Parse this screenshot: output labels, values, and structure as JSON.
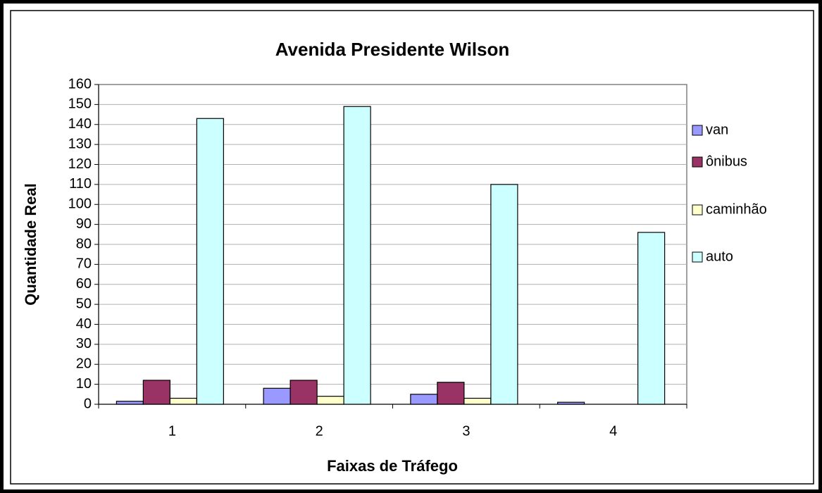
{
  "chart_data": {
    "type": "bar",
    "title": "Avenida Presidente Wilson",
    "x_label": "Faixas de Tráfego",
    "y_label": "Quantidade Real",
    "categories": [
      "1",
      "2",
      "3",
      "4"
    ],
    "series": [
      {
        "name": "van",
        "color": "#9999ff",
        "values": [
          1.5,
          8,
          5,
          1
        ]
      },
      {
        "name": "ônibus",
        "color": "#993366",
        "values": [
          12,
          12,
          11,
          0
        ]
      },
      {
        "name": "caminhão",
        "color": "#ffffcc",
        "values": [
          3,
          4,
          3,
          0
        ]
      },
      {
        "name": "auto",
        "color": "#ccffff",
        "values": [
          143,
          149,
          110,
          86
        ]
      }
    ],
    "ylim": [
      0,
      160
    ],
    "yticks": [
      0,
      10,
      20,
      30,
      40,
      50,
      60,
      70,
      80,
      90,
      100,
      110,
      120,
      130,
      140,
      150,
      160
    ],
    "grid": true,
    "legend": "right"
  }
}
